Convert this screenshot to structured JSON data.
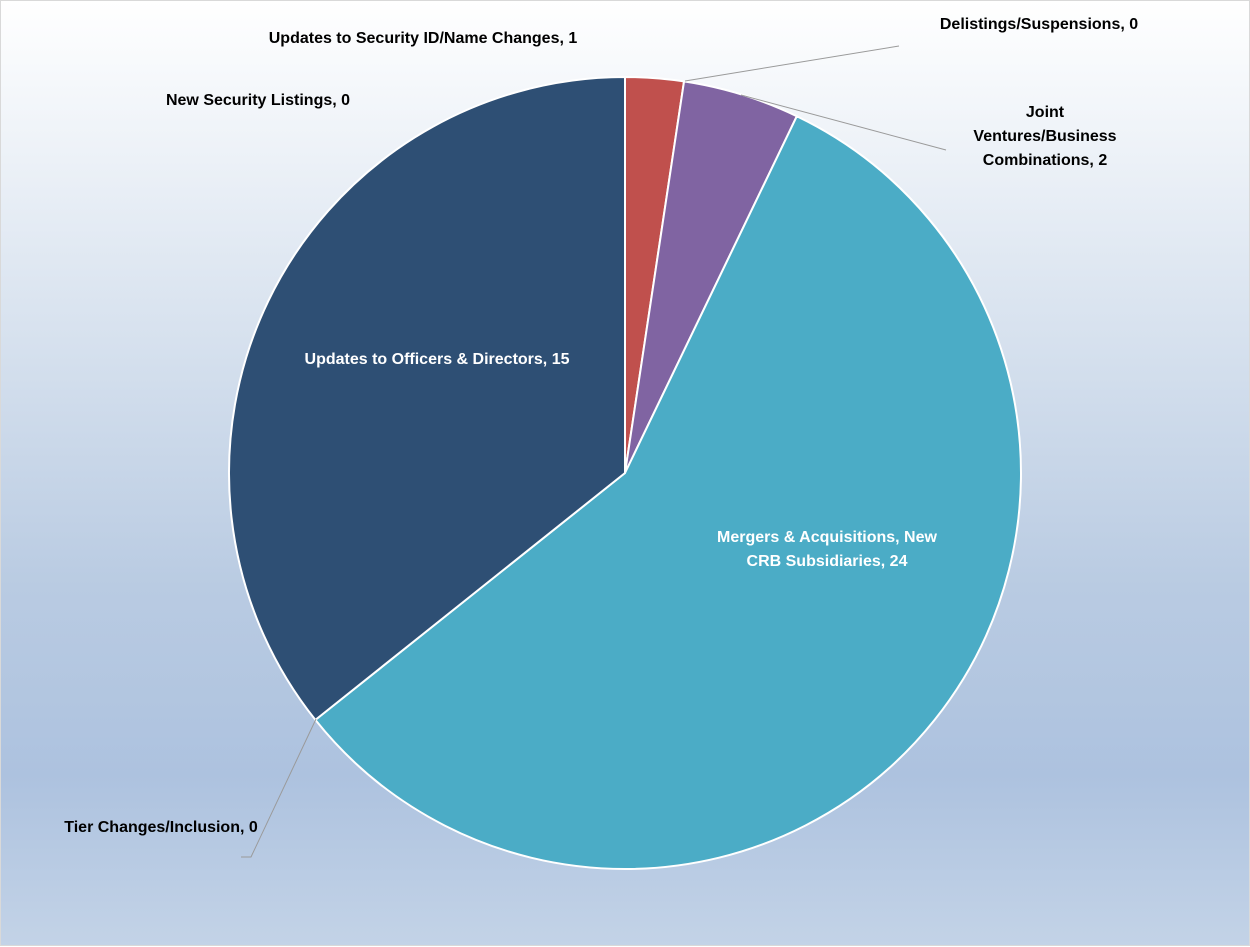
{
  "chart_data": {
    "type": "pie",
    "title": "",
    "categories": [
      "Updates to Security ID/Name Changes",
      "Delistings/Suspensions",
      "Joint Ventures/Business Combinations",
      "Mergers & Acquisitions, New CRB Subsidiaries",
      "Tier Changes/Inclusion",
      "Updates to Officers & Directors",
      "New Security Listings"
    ],
    "values": [
      1,
      0,
      2,
      24,
      0,
      15,
      0
    ],
    "colors": [
      "#c0504d",
      "#c0504d",
      "#8064a2",
      "#4bacc6",
      "#4bacc6",
      "#2e4f74",
      "#2e4f74"
    ],
    "labels": [
      {
        "lines": [
          "Updates to Security ID/Name Changes, 1"
        ],
        "color": "#000000",
        "leader": false
      },
      {
        "lines": [
          "Delistings/Suspensions, 0"
        ],
        "color": "#000000",
        "leader": true
      },
      {
        "lines": [
          "Joint",
          "Ventures/Business",
          "Combinations, 2"
        ],
        "color": "#000000",
        "leader": true
      },
      {
        "lines": [
          "Mergers & Acquisitions, New",
          "CRB Subsidiaries, 24"
        ],
        "color": "#ffffff",
        "leader": false
      },
      {
        "lines": [
          "Tier Changes/Inclusion, 0"
        ],
        "color": "#000000",
        "leader": true
      },
      {
        "lines": [
          "Updates to Officers & Directors, 15"
        ],
        "color": "#ffffff",
        "leader": false
      },
      {
        "lines": [
          "New Security Listings, 0"
        ],
        "color": "#000000",
        "leader": false
      }
    ],
    "legend": "none"
  }
}
